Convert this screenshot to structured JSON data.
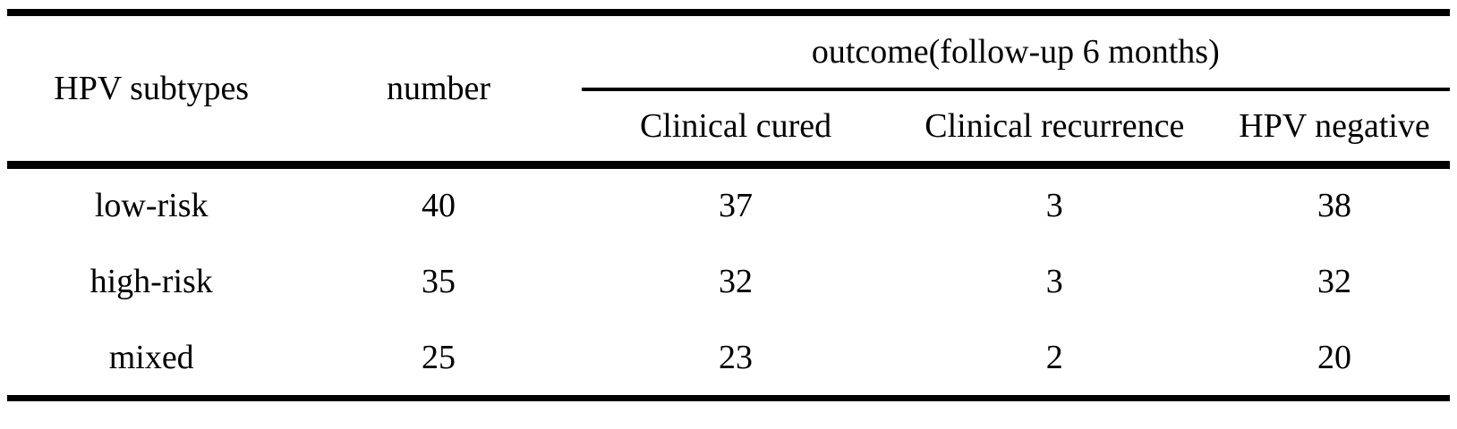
{
  "table": {
    "col_headers": {
      "hpv_subtypes": "HPV subtypes",
      "number": "number",
      "outcome_group": "outcome(follow-up 6 months)",
      "clinical_cured": "Clinical cured",
      "clinical_recurrence": "Clinical recurrence",
      "hpv_negative": "HPV negative"
    },
    "rows": [
      {
        "subtype": "low-risk",
        "number": "40",
        "clinical_cured": "37",
        "clinical_recurrence": "3",
        "hpv_negative": "38"
      },
      {
        "subtype": "high-risk",
        "number": "35",
        "clinical_cured": "32",
        "clinical_recurrence": "3",
        "hpv_negative": "32"
      },
      {
        "subtype": "mixed",
        "number": "25",
        "clinical_cured": "23",
        "clinical_recurrence": "2",
        "hpv_negative": "20"
      }
    ],
    "colors": {
      "text": "#000000",
      "rule": "#000000",
      "background": "#ffffff"
    }
  },
  "chart_data": {
    "type": "table",
    "columns": [
      "HPV subtypes",
      "number",
      "Clinical cured",
      "Clinical recurrence",
      "HPV negative"
    ],
    "column_group": {
      "label": "outcome(follow-up 6 months)",
      "spans": [
        "Clinical cured",
        "Clinical recurrence",
        "HPV negative"
      ]
    },
    "rows": [
      [
        "low-risk",
        40,
        37,
        3,
        38
      ],
      [
        "high-risk",
        35,
        32,
        3,
        32
      ],
      [
        "mixed",
        25,
        23,
        2,
        20
      ]
    ]
  }
}
